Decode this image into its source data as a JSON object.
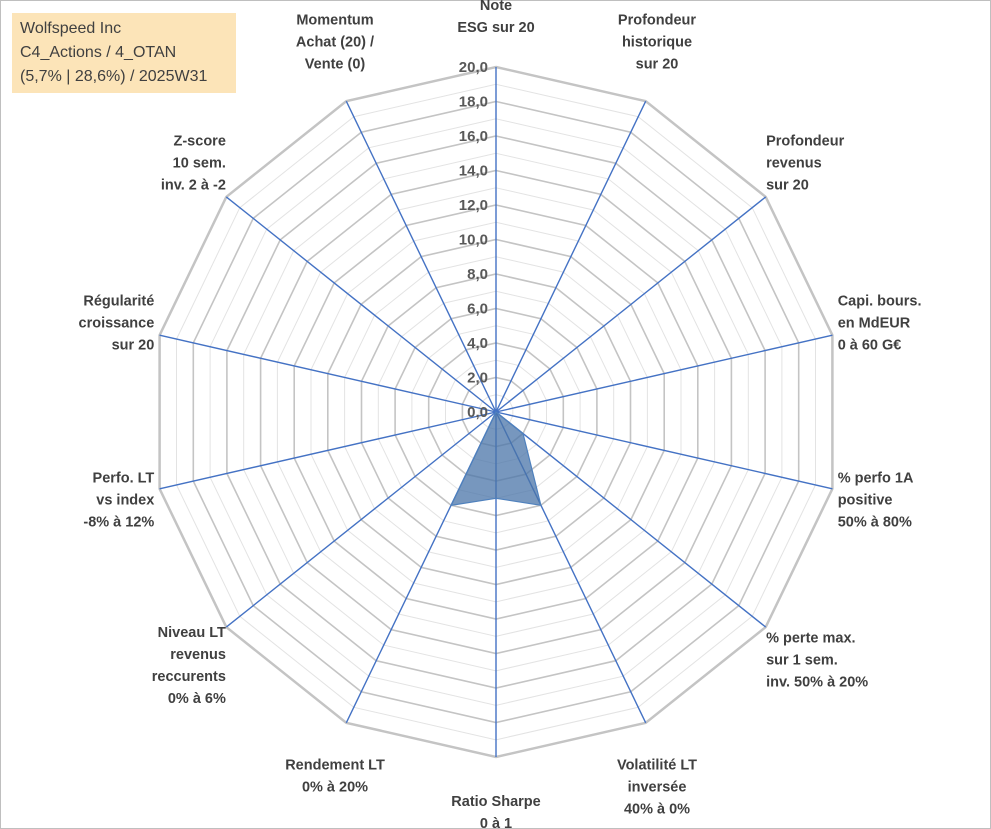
{
  "title_box": {
    "lines": [
      "Wolfspeed Inc",
      "C4_Actions / 4_OTAN",
      "(5,7% | 28,6%) / 2025W31"
    ]
  },
  "chart_data": {
    "type": "radar",
    "axes": [
      [
        "Note",
        "ESG sur 20"
      ],
      [
        "Profondeur",
        "historique",
        "sur 20"
      ],
      [
        "Profondeur",
        "revenus",
        "sur 20"
      ],
      [
        "Capi. bours.",
        "en MdEUR",
        "0 à 60 G€"
      ],
      [
        "% perfo 1A",
        "positive",
        "50% à 80%"
      ],
      [
        "% perte max.",
        "sur 1 sem.",
        "inv. 50% à 20%"
      ],
      [
        "Volatilité LT",
        "inversée",
        "40% à 0%"
      ],
      [
        "Ratio Sharpe",
        "0 à 1"
      ],
      [
        "Rendement LT",
        "0% à 20%"
      ],
      [
        "Niveau LT",
        "revenus",
        "reccurents",
        "0% à 6%"
      ],
      [
        "Perfo. LT",
        "vs index",
        "-8% à 12%"
      ],
      [
        "Régularité",
        "croissance",
        "sur 20"
      ],
      [
        "Z-score",
        "10 sem.",
        "inv. 2 à -2"
      ],
      [
        "Momentum",
        "Achat (20) /",
        "Vente (0)"
      ]
    ],
    "tick_labels": [
      "0,0",
      "2,0",
      "4,0",
      "6,0",
      "8,0",
      "10,0",
      "12,0",
      "14,0",
      "16,0",
      "18,0",
      "20,0"
    ],
    "rmin": 0,
    "rmax": 20,
    "series": [
      {
        "values": [
          0,
          0,
          0,
          0,
          0,
          2,
          6,
          5,
          6,
          0,
          0,
          0,
          0,
          0
        ],
        "fill_color": "#4a74a8",
        "stroke_color": "#4f81bd"
      }
    ],
    "grid": true,
    "legend": "none"
  }
}
